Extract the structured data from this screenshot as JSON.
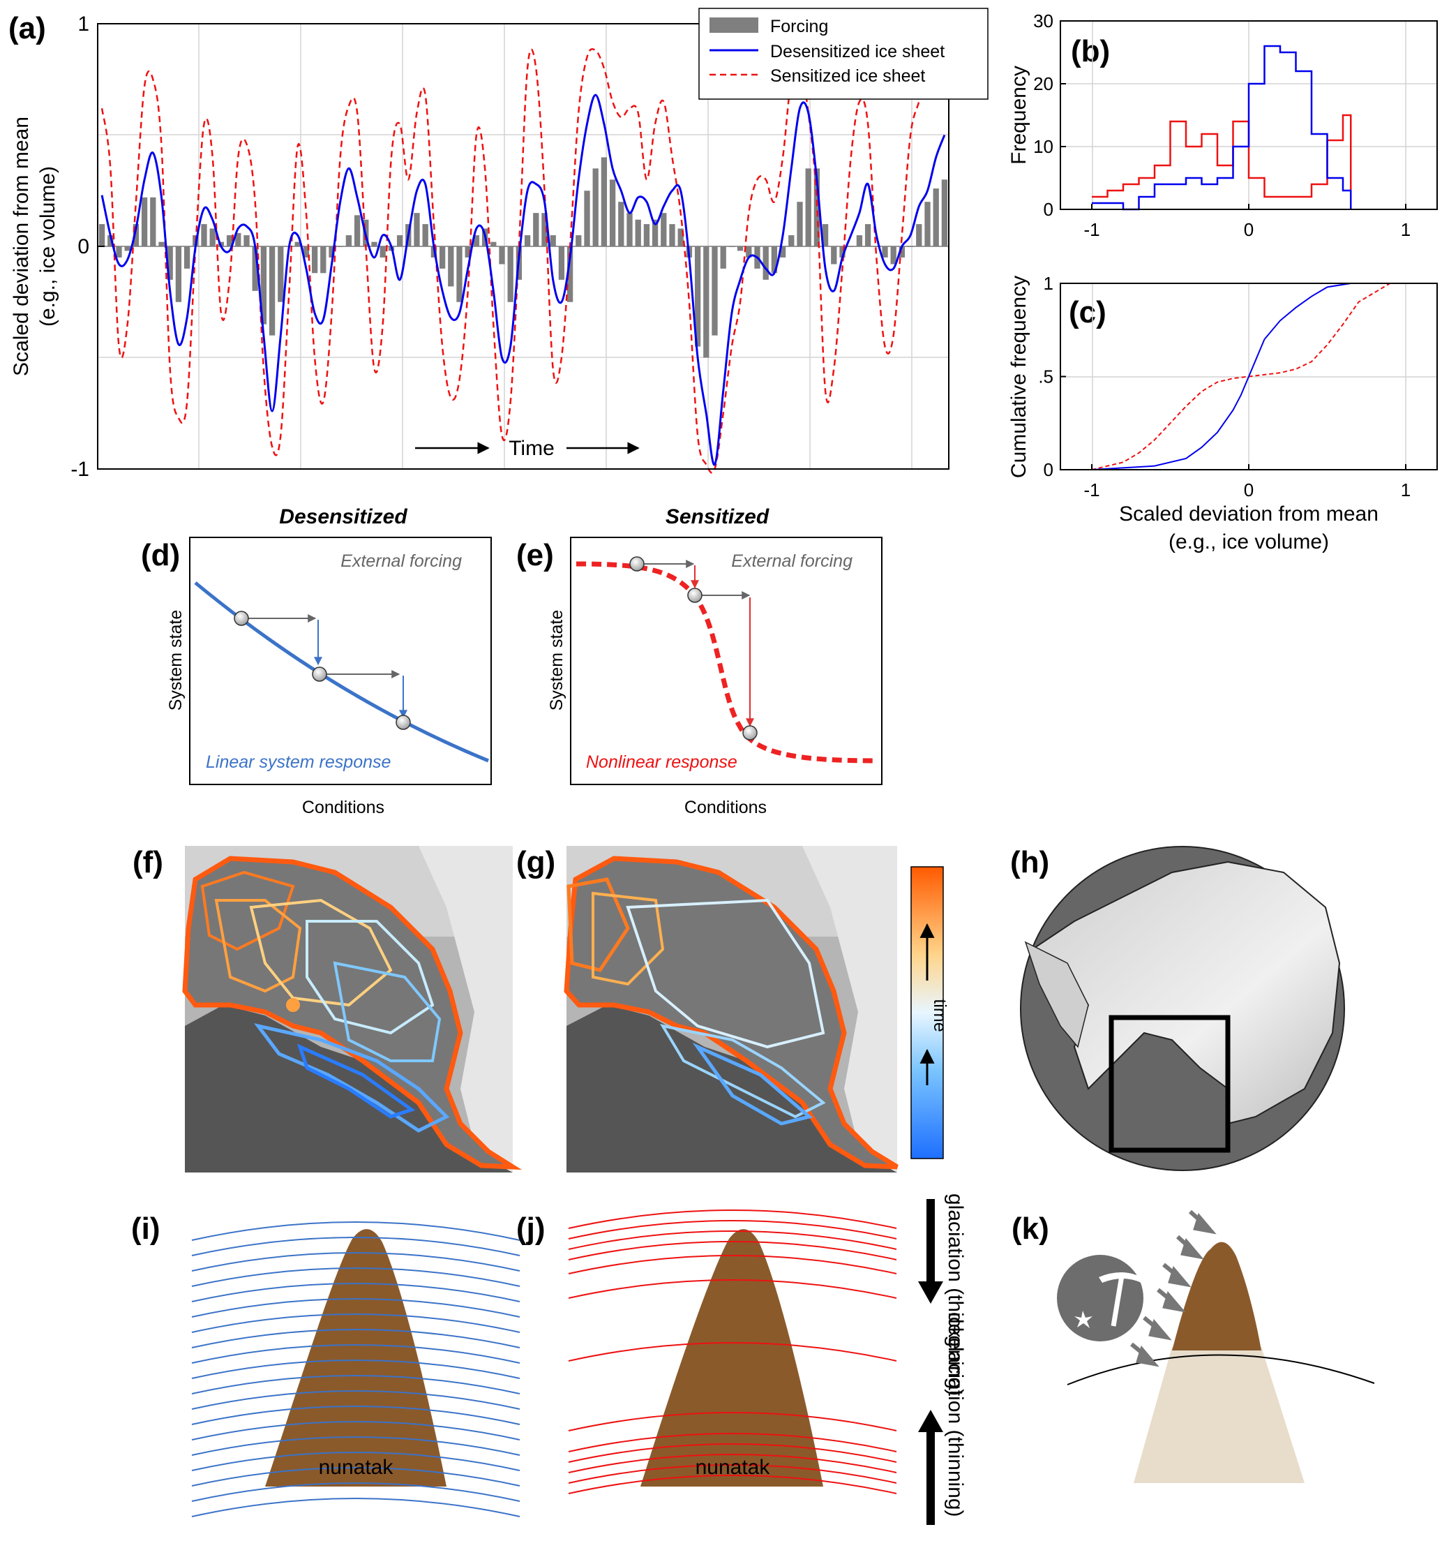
{
  "figure": {
    "panel_labels": [
      "(a)",
      "(b)",
      "(c)",
      "(d)",
      "(e)",
      "(f)",
      "(g)",
      "(h)",
      "(i)",
      "(j)",
      "(k)"
    ],
    "colors": {
      "forcing": "#7f7f7f",
      "desensitized": "#0000ee",
      "sensitized": "#ee1111",
      "linear": "#3b73c8",
      "nunatak": "#8b5a2b",
      "nunatak_buried": "#e8dccb"
    }
  },
  "panel_a": {
    "ylabel_line1": "Scaled deviation from mean",
    "ylabel_line2": "(e.g., ice volume)",
    "time_label": "Time",
    "legend": {
      "forcing": "Forcing",
      "desensitized": "Desensitized ice sheet",
      "sensitized": "Sensitized ice sheet"
    }
  },
  "panel_b": {
    "ylabel": "Frequency"
  },
  "panel_c": {
    "ylabel": "Cumulative frequency",
    "xlabel_line1": "Scaled deviation from mean",
    "xlabel_line2": "(e.g., ice volume)"
  },
  "panel_d": {
    "title": "Desensitized",
    "forcing_label": "External forcing",
    "response_label": "Linear system response",
    "ylabel": "System state",
    "xlabel": "Conditions"
  },
  "panel_e": {
    "title": "Sensitized",
    "forcing_label": "External forcing",
    "response_label": "Nonlinear response",
    "ylabel": "System state",
    "xlabel": "Conditions"
  },
  "colorbar": {
    "label": "time"
  },
  "panel_i": {
    "label": "nunatak"
  },
  "panel_j": {
    "label": "nunatak"
  },
  "side_arrows": {
    "glaciation": "glaciation (thickening)",
    "deglaciation": "deglaciation (thinning)"
  },
  "chart_data": [
    {
      "id": "a",
      "type": "bar+line",
      "title": "",
      "xlabel": "Time",
      "ylabel": "Scaled deviation from mean (e.g., ice volume)",
      "ylim": [
        -1,
        1
      ],
      "yticks": [
        -1,
        0,
        1
      ],
      "ytick_labels": [
        "-1",
        "0",
        "1"
      ],
      "x": [
        0,
        1,
        2,
        3,
        4,
        5,
        6,
        7,
        8,
        9,
        10,
        11,
        12,
        13,
        14,
        15,
        16,
        17,
        18,
        19,
        20,
        21,
        22,
        23,
        24,
        25,
        26,
        27,
        28,
        29,
        30,
        31,
        32,
        33,
        34,
        35,
        36,
        37,
        38,
        39,
        40,
        41,
        42,
        43,
        44,
        45,
        46,
        47,
        48,
        49,
        50,
        51,
        52,
        53,
        54,
        55,
        56,
        57,
        58,
        59,
        60,
        61,
        62,
        63,
        64,
        65,
        66,
        67,
        68,
        69,
        70,
        71,
        72,
        73,
        74,
        75,
        76,
        77,
        78,
        79,
        80,
        81,
        82,
        83,
        84,
        85,
        86,
        87,
        88,
        89,
        90,
        91,
        92,
        93,
        94,
        95,
        96,
        97,
        98,
        99
      ],
      "series": [
        {
          "name": "Forcing",
          "style": "bar",
          "values": [
            0.1,
            0.05,
            -0.05,
            -0.02,
            0.1,
            0.22,
            0.22,
            0.02,
            -0.15,
            -0.25,
            -0.1,
            0.05,
            0.1,
            0.08,
            0.02,
            0.05,
            0.06,
            0.05,
            -0.2,
            -0.35,
            -0.4,
            -0.25,
            0.0,
            0.02,
            -0.05,
            -0.12,
            -0.12,
            -0.05,
            0.0,
            0.05,
            0.14,
            0.12,
            0.02,
            -0.05,
            -0.02,
            0.05,
            0.1,
            0.15,
            0.1,
            -0.05,
            -0.1,
            -0.18,
            -0.25,
            -0.05,
            0.05,
            0.08,
            0.02,
            -0.08,
            -0.25,
            -0.15,
            0.05,
            0.15,
            0.15,
            0.05,
            -0.15,
            -0.25,
            0.05,
            0.25,
            0.35,
            0.4,
            0.3,
            0.2,
            0.15,
            0.12,
            0.1,
            0.12,
            0.15,
            0.1,
            0.08,
            -0.05,
            -0.45,
            -0.5,
            -0.4,
            -0.1,
            0.0,
            -0.02,
            -0.05,
            -0.1,
            -0.15,
            -0.12,
            -0.05,
            0.05,
            0.2,
            0.35,
            0.35,
            0.1,
            -0.08,
            -0.05,
            0.0,
            0.05,
            0.1,
            0.0,
            -0.05,
            -0.08,
            -0.05,
            0.0,
            0.1,
            0.2,
            0.26,
            0.3
          ]
        },
        {
          "name": "Desensitized ice sheet",
          "style": "line",
          "values": [
            0.23,
            0.05,
            -0.08,
            -0.06,
            0.08,
            0.3,
            0.42,
            0.22,
            -0.2,
            -0.44,
            -0.32,
            0.0,
            0.17,
            0.12,
            0.0,
            -0.02,
            0.08,
            0.09,
            0.0,
            -0.4,
            -0.74,
            -0.4,
            0.0,
            0.05,
            -0.1,
            -0.3,
            -0.33,
            -0.08,
            0.2,
            0.35,
            0.22,
            0.05,
            -0.05,
            0.05,
            0.0,
            -0.15,
            0.05,
            0.25,
            0.28,
            0.0,
            -0.2,
            -0.32,
            -0.3,
            -0.1,
            0.08,
            0.05,
            -0.2,
            -0.5,
            -0.45,
            -0.05,
            0.25,
            0.28,
            0.2,
            -0.15,
            -0.25,
            -0.05,
            0.3,
            0.55,
            0.68,
            0.55,
            0.35,
            0.25,
            0.15,
            0.22,
            0.2,
            0.1,
            0.18,
            0.25,
            0.25,
            -0.05,
            -0.5,
            -0.75,
            -0.98,
            -0.65,
            -0.3,
            -0.15,
            -0.05,
            -0.05,
            -0.1,
            -0.12,
            0.05,
            0.35,
            0.62,
            0.6,
            0.3,
            -0.1,
            -0.2,
            -0.05,
            0.05,
            0.15,
            0.28,
            0.05,
            -0.08,
            -0.1,
            0.0,
            0.05,
            0.18,
            0.25,
            0.4,
            0.5
          ]
        },
        {
          "name": "Sensitized ice sheet",
          "style": "dashed",
          "values": [
            0.62,
            0.35,
            -0.45,
            -0.35,
            0.2,
            0.72,
            0.75,
            0.45,
            -0.55,
            -0.77,
            -0.7,
            0.0,
            0.55,
            0.4,
            -0.3,
            -0.15,
            0.4,
            0.46,
            0.2,
            -0.55,
            -0.9,
            -0.85,
            -0.2,
            0.45,
            0.15,
            -0.5,
            -0.7,
            -0.3,
            0.4,
            0.63,
            0.6,
            0.0,
            -0.55,
            -0.35,
            0.4,
            0.55,
            0.3,
            0.6,
            0.68,
            0.1,
            -0.45,
            -0.68,
            -0.6,
            -0.2,
            0.5,
            0.35,
            -0.35,
            -0.85,
            -0.7,
            0.0,
            0.8,
            0.8,
            0.25,
            -0.55,
            -0.5,
            0.0,
            0.6,
            0.85,
            0.88,
            0.8,
            0.65,
            0.58,
            0.62,
            0.6,
            0.3,
            0.55,
            0.65,
            0.4,
            0.15,
            -0.25,
            -0.85,
            -0.98,
            -1.0,
            -0.75,
            -0.45,
            -0.25,
            0.15,
            0.3,
            0.3,
            0.2,
            0.4,
            0.75,
            0.8,
            0.6,
            0.2,
            -0.65,
            -0.55,
            -0.1,
            0.4,
            0.65,
            0.55,
            -0.05,
            -0.45,
            -0.4,
            0.05,
            0.5,
            0.65,
            0.78,
            0.8,
            0.7
          ]
        }
      ]
    },
    {
      "id": "b",
      "type": "histogram",
      "ylabel": "Frequency",
      "xlabel": "",
      "xlim": [
        -1.2,
        1.2
      ],
      "ylim": [
        0,
        30
      ],
      "xticks": [
        -1,
        0,
        1
      ],
      "xtick_labels": [
        "-1",
        "0",
        "1"
      ],
      "yticks": [
        0,
        10,
        20,
        30
      ],
      "ytick_labels": [
        "0",
        "10",
        "20",
        "30"
      ],
      "bin_edges": [
        -1.0,
        -0.9,
        -0.8,
        -0.7,
        -0.6,
        -0.5,
        -0.4,
        -0.3,
        -0.2,
        -0.1,
        0.0,
        0.1,
        0.2,
        0.3,
        0.4,
        0.5,
        0.6,
        0.65
      ],
      "series": [
        {
          "name": "Desensitized",
          "counts": [
            1,
            1,
            0,
            2,
            4,
            4,
            5,
            4,
            5,
            10,
            20,
            26,
            25,
            22,
            12,
            5,
            3
          ]
        },
        {
          "name": "Sensitized",
          "counts": [
            2,
            3,
            4,
            5,
            7,
            14,
            10,
            12,
            7,
            14,
            5,
            2,
            2,
            2,
            4,
            11,
            15
          ]
        }
      ]
    },
    {
      "id": "c",
      "type": "line",
      "ylabel": "Cumulative frequency",
      "xlabel": "Scaled deviation from mean (e.g., ice volume)",
      "xlim": [
        -1.2,
        1.2
      ],
      "ylim": [
        0,
        1
      ],
      "xticks": [
        -1,
        0,
        1
      ],
      "xtick_labels": [
        "-1",
        "0",
        "1"
      ],
      "yticks": [
        0,
        0.5,
        1
      ],
      "ytick_labels": [
        "0",
        ".5",
        "1"
      ],
      "series": [
        {
          "name": "Desensitized",
          "style": "solid",
          "x": [
            -1.0,
            -0.6,
            -0.4,
            -0.3,
            -0.2,
            -0.1,
            -0.05,
            0.0,
            0.05,
            0.1,
            0.2,
            0.3,
            0.4,
            0.5,
            0.65
          ],
          "y": [
            0.0,
            0.02,
            0.06,
            0.12,
            0.2,
            0.32,
            0.4,
            0.5,
            0.6,
            0.7,
            0.8,
            0.87,
            0.93,
            0.98,
            1.0
          ]
        },
        {
          "name": "Sensitized",
          "style": "dashed",
          "x": [
            -1.0,
            -0.8,
            -0.7,
            -0.6,
            -0.5,
            -0.4,
            -0.3,
            -0.2,
            -0.1,
            0.0,
            0.1,
            0.2,
            0.3,
            0.4,
            0.5,
            0.6,
            0.7,
            0.9
          ],
          "y": [
            0.0,
            0.04,
            0.09,
            0.16,
            0.25,
            0.34,
            0.42,
            0.47,
            0.49,
            0.5,
            0.51,
            0.52,
            0.54,
            0.58,
            0.67,
            0.78,
            0.9,
            1.0
          ]
        }
      ]
    }
  ]
}
